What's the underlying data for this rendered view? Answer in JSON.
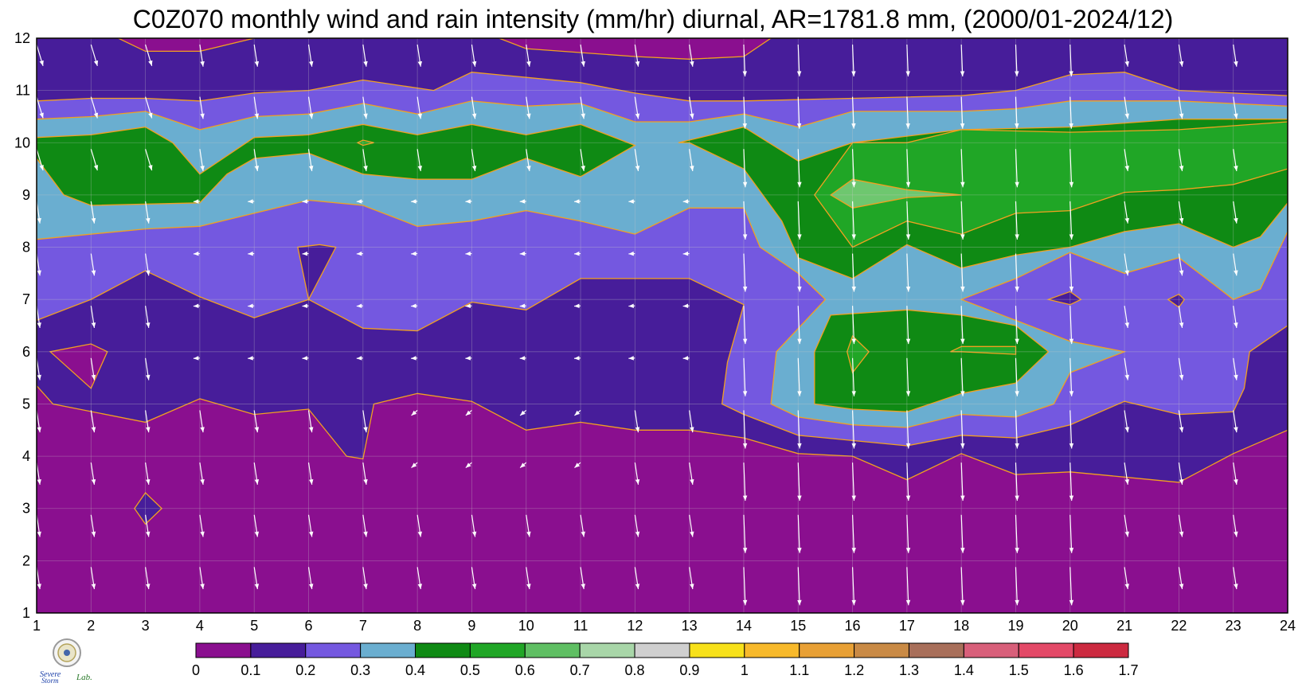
{
  "title": "C0Z070 monthly wind and rain intensity (mm/hr) diurnal, AR=1781.8 mm, (2000/01-2024/12)",
  "chart_data": {
    "type": "heatmap",
    "title": "C0Z070 monthly wind and rain intensity (mm/hr) diurnal, AR=1781.8 mm, (2000/01-2024/12)",
    "xlabel": "",
    "ylabel": "",
    "x_ticks": [
      "1",
      "2",
      "3",
      "4",
      "5",
      "6",
      "7",
      "8",
      "9",
      "10",
      "11",
      "12",
      "13",
      "14",
      "15",
      "16",
      "17",
      "18",
      "19",
      "20",
      "21",
      "22",
      "23",
      "24"
    ],
    "y_ticks": [
      "1",
      "2",
      "3",
      "4",
      "5",
      "6",
      "7",
      "8",
      "9",
      "10",
      "11",
      "12"
    ],
    "xlim": [
      1,
      24
    ],
    "ylim": [
      1,
      12
    ],
    "grid": true,
    "contour_lines": true,
    "overlay": "wind vectors (white arrows)",
    "colorbar": {
      "labels": [
        "0",
        "0.1",
        "0.2",
        "0.3",
        "0.4",
        "0.5",
        "0.6",
        "0.7",
        "0.8",
        "0.9",
        "1",
        "1.1",
        "1.2",
        "1.3",
        "1.4",
        "1.5",
        "1.6",
        "1.7"
      ],
      "colors": [
        "#8a0f8f",
        "#471d9a",
        "#7458e0",
        "#6aaed0",
        "#0f8a14",
        "#20a626",
        "#5fbf63",
        "#a8d6a8",
        "#cfcfcf",
        "#f7e11a",
        "#f7b92b",
        "#e8a035",
        "#c98a45",
        "#a86f5a",
        "#d85f7a",
        "#e34967",
        "#cc2a40"
      ]
    },
    "regions": [
      {
        "name": "low-rain-base",
        "value": 0.05
      },
      {
        "name": "band-0.1-0.2",
        "value": 0.15
      },
      {
        "name": "band-0.2-0.3",
        "value": 0.25
      },
      {
        "name": "band-0.3-0.4",
        "value": 0.35
      },
      {
        "name": "band-0.4-0.5",
        "value": 0.45
      },
      {
        "name": "band-0.5-0.6",
        "value": 0.55
      },
      {
        "name": "band-0.6-0.7",
        "value": 0.65
      }
    ]
  },
  "colors": {
    "c0": "#8a0f8f",
    "c1": "#471d9a",
    "c2": "#7458e0",
    "c3": "#6aaed0",
    "c4": "#0f8a14",
    "c5": "#20a626",
    "c6": "#6ec76f",
    "contour": "#f2a020",
    "arrow": "#ffffff"
  },
  "logo": {
    "text_line1": "Severe",
    "text_line2": "Storm",
    "text_lab": "Lab."
  }
}
